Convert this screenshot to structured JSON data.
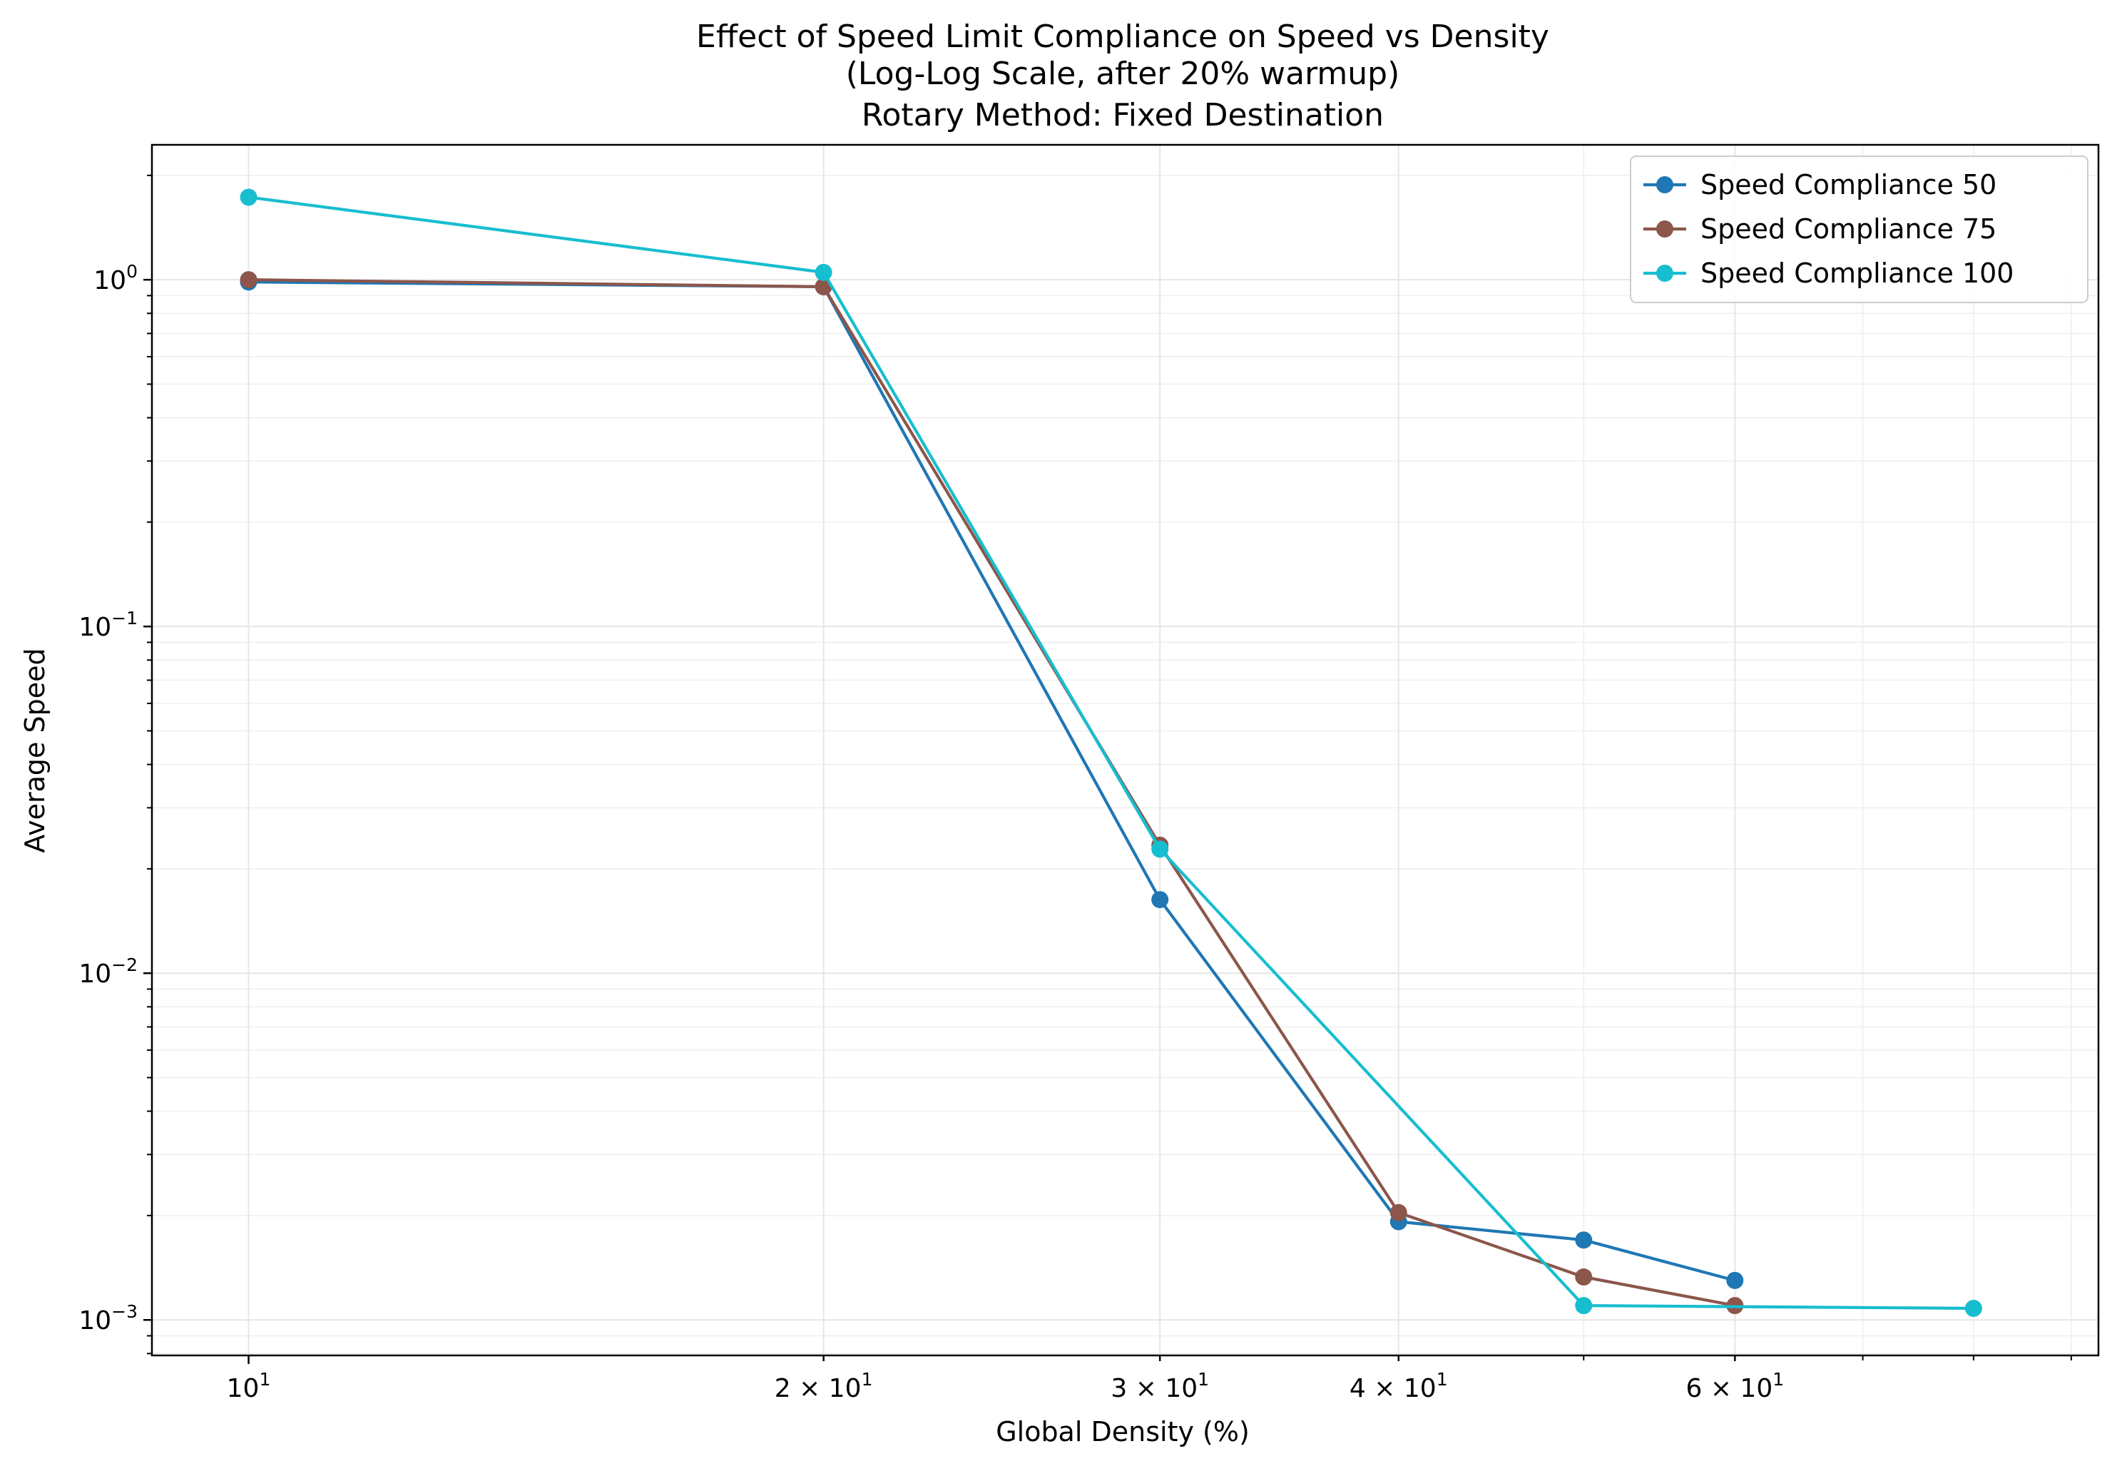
{
  "chart_data": {
    "type": "line",
    "title_lines": [
      "Effect of Speed Limit Compliance on Speed vs Density",
      "(Log-Log Scale, after 20% warmup)",
      "Rotary Method: Fixed Destination"
    ],
    "xlabel": "Global Density (%)",
    "ylabel": "Average Speed",
    "x_scale": "log",
    "y_scale": "log",
    "xlim": [
      8.9,
      93
    ],
    "ylim": [
      0.00079,
      2.45
    ],
    "grid": true,
    "legend_position": "upper right",
    "x_ticks": [
      {
        "value": 10,
        "base": "10",
        "exp": "1"
      },
      {
        "value": 20,
        "base": "2 × 10",
        "exp": "1"
      },
      {
        "value": 30,
        "base": "3 × 10",
        "exp": "1"
      },
      {
        "value": 40,
        "base": "4 × 10",
        "exp": "1"
      },
      {
        "value": 60,
        "base": "6 × 10",
        "exp": "1"
      }
    ],
    "x_minor_ticks": [
      50,
      70,
      80,
      90
    ],
    "y_ticks": [
      {
        "value": 1,
        "base": "10",
        "exp": "0"
      },
      {
        "value": 0.1,
        "base": "10",
        "exp": "−1"
      },
      {
        "value": 0.01,
        "base": "10",
        "exp": "−2"
      },
      {
        "value": 0.001,
        "base": "10",
        "exp": "−3"
      }
    ],
    "series": [
      {
        "name": "Speed Compliance 50",
        "color": "#1f77b4",
        "x": [
          10,
          20,
          30,
          40,
          50,
          60
        ],
        "y": [
          0.985,
          0.955,
          0.0163,
          0.00192,
          0.0017,
          0.0013
        ]
      },
      {
        "name": "Speed Compliance 75",
        "color": "#8c564b",
        "x": [
          10,
          20,
          30,
          40,
          50,
          60
        ],
        "y": [
          1.0,
          0.955,
          0.0234,
          0.00204,
          0.00133,
          0.0011
        ]
      },
      {
        "name": "Speed Compliance 100",
        "color": "#17becf",
        "x": [
          10,
          20,
          30,
          50,
          80
        ],
        "y": [
          1.73,
          1.05,
          0.0228,
          0.0011,
          0.00108
        ]
      }
    ]
  }
}
